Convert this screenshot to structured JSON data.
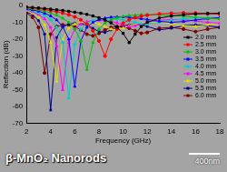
{
  "chart_data": {
    "type": "line",
    "x_label": "Frequency (GHz)",
    "y_label": "Reflection (dB)",
    "annotations": [
      "β-MnO₂ Nanorods",
      "400nm"
    ],
    "x": [
      2,
      2.5,
      3,
      3.5,
      4,
      4.5,
      5,
      5.5,
      6,
      6.5,
      7,
      7.5,
      8,
      8.5,
      9,
      9.5,
      10,
      10.5,
      11,
      11.5,
      12,
      13,
      14,
      15,
      16,
      17,
      18
    ],
    "xlim": [
      2,
      18
    ],
    "xticks": [
      2,
      4,
      6,
      8,
      10,
      12,
      14,
      16,
      18
    ],
    "ylim": [
      -70,
      0
    ],
    "yticks": [
      0,
      -10,
      -20,
      -30,
      -40,
      -50,
      -60,
      -70
    ],
    "grid": false,
    "legend": "right",
    "series": [
      {
        "name": "2.0 mm",
        "color": "#000000",
        "marker": "rect",
        "values": [
          -1,
          -1.2,
          -1.5,
          -1.8,
          -2.2,
          -2.6,
          -3,
          -3.5,
          -4,
          -4.6,
          -5.3,
          -6.2,
          -7.3,
          -8.6,
          -10.3,
          -12.8,
          -16.5,
          -22,
          -17,
          -12.5,
          -10,
          -7.5,
          -6.2,
          -5.5,
          -5,
          -4.8,
          -4.6
        ]
      },
      {
        "name": "2.5 mm",
        "color": "#ff0000",
        "marker": "circle",
        "values": [
          -1.2,
          -1.5,
          -1.9,
          -2.4,
          -3,
          -3.7,
          -4.5,
          -5.5,
          -6.8,
          -8.5,
          -11,
          -15,
          -21,
          -30,
          -20,
          -14,
          -10.5,
          -8.5,
          -7.2,
          -6.4,
          -5.8,
          -5,
          -4.6,
          -4.4,
          -4.5,
          -4.8,
          -5.2
        ]
      },
      {
        "name": "3.0 mm",
        "color": "#00c000",
        "marker": "triangle",
        "values": [
          -1.5,
          -2,
          -2.6,
          -3.4,
          -4.4,
          -5.8,
          -7.6,
          -10,
          -14,
          -21,
          -38,
          -22,
          -14,
          -10.5,
          -8.5,
          -7.3,
          -6.5,
          -6,
          -5.7,
          -5.5,
          -5.4,
          -5.5,
          -5.9,
          -6.4,
          -7,
          -7.6,
          -8
        ]
      },
      {
        "name": "3.5 mm",
        "color": "#0000ff",
        "marker": "triangle",
        "values": [
          -2,
          -2.6,
          -3.4,
          -4.6,
          -6.2,
          -8.6,
          -12.5,
          -20,
          -48,
          -21,
          -13,
          -10,
          -8.4,
          -7.5,
          -7,
          -6.8,
          -6.8,
          -7,
          -7.3,
          -7.8,
          -8.3,
          -9.4,
          -10,
          -9.5,
          -8.6,
          -7.8,
          -7.2
        ]
      },
      {
        "name": "4.0 mm",
        "color": "#00cccc",
        "marker": "rectRot",
        "values": [
          -2.4,
          -3.2,
          -4.4,
          -6,
          -8.5,
          -13,
          -22,
          -55,
          -23,
          -14,
          -10.5,
          -9,
          -8.3,
          -8,
          -8,
          -8.2,
          -8.6,
          -9.2,
          -10,
          -10.8,
          -11,
          -10,
          -8.8,
          -8,
          -7.5,
          -7.4,
          -7.6
        ]
      },
      {
        "name": "4.5 mm",
        "color": "#ff00ff",
        "marker": "triangle",
        "values": [
          -2.8,
          -3.8,
          -5.4,
          -8,
          -13,
          -24,
          -50,
          -22,
          -14,
          -11,
          -9.6,
          -9,
          -8.8,
          -9,
          -9.5,
          -10.3,
          -11.5,
          -12.5,
          -12,
          -11,
          -10,
          -8.8,
          -8.3,
          -8.5,
          -9.2,
          -10,
          -10.5
        ]
      },
      {
        "name": "5.0 mm",
        "color": "#e0e000",
        "marker": "triangle",
        "values": [
          -3.2,
          -4.6,
          -7,
          -11.5,
          -22,
          -45,
          -20,
          -13.5,
          -11,
          -10,
          -9.8,
          -10.2,
          -11,
          -12.5,
          -14,
          -14.5,
          -13.5,
          -12,
          -11,
          -10.3,
          -10,
          -10,
          -10.8,
          -12,
          -12.5,
          -11.5,
          -10.5
        ]
      },
      {
        "name": "5.5 mm",
        "color": "#000080",
        "marker": "star",
        "values": [
          -3.8,
          -5.5,
          -9,
          -17,
          -62,
          -19,
          -12.8,
          -11,
          -10.5,
          -10.8,
          -11.8,
          -13.5,
          -15.5,
          -16,
          -14.5,
          -13,
          -12,
          -11.5,
          -11.2,
          -11.5,
          -12.5,
          -14.5,
          -13.5,
          -12,
          -11.5,
          -12,
          -13
        ]
      },
      {
        "name": "6.0 mm",
        "color": "#800000",
        "marker": "circle",
        "values": [
          -4.5,
          -7,
          -13,
          -40,
          -17,
          -12.5,
          -11.5,
          -11.5,
          -12.5,
          -14.5,
          -17,
          -18,
          -16.5,
          -14.5,
          -13,
          -12.5,
          -12.8,
          -13.5,
          -15,
          -16.5,
          -16,
          -13.5,
          -13,
          -14,
          -15.5,
          -14,
          -13
        ]
      }
    ]
  }
}
